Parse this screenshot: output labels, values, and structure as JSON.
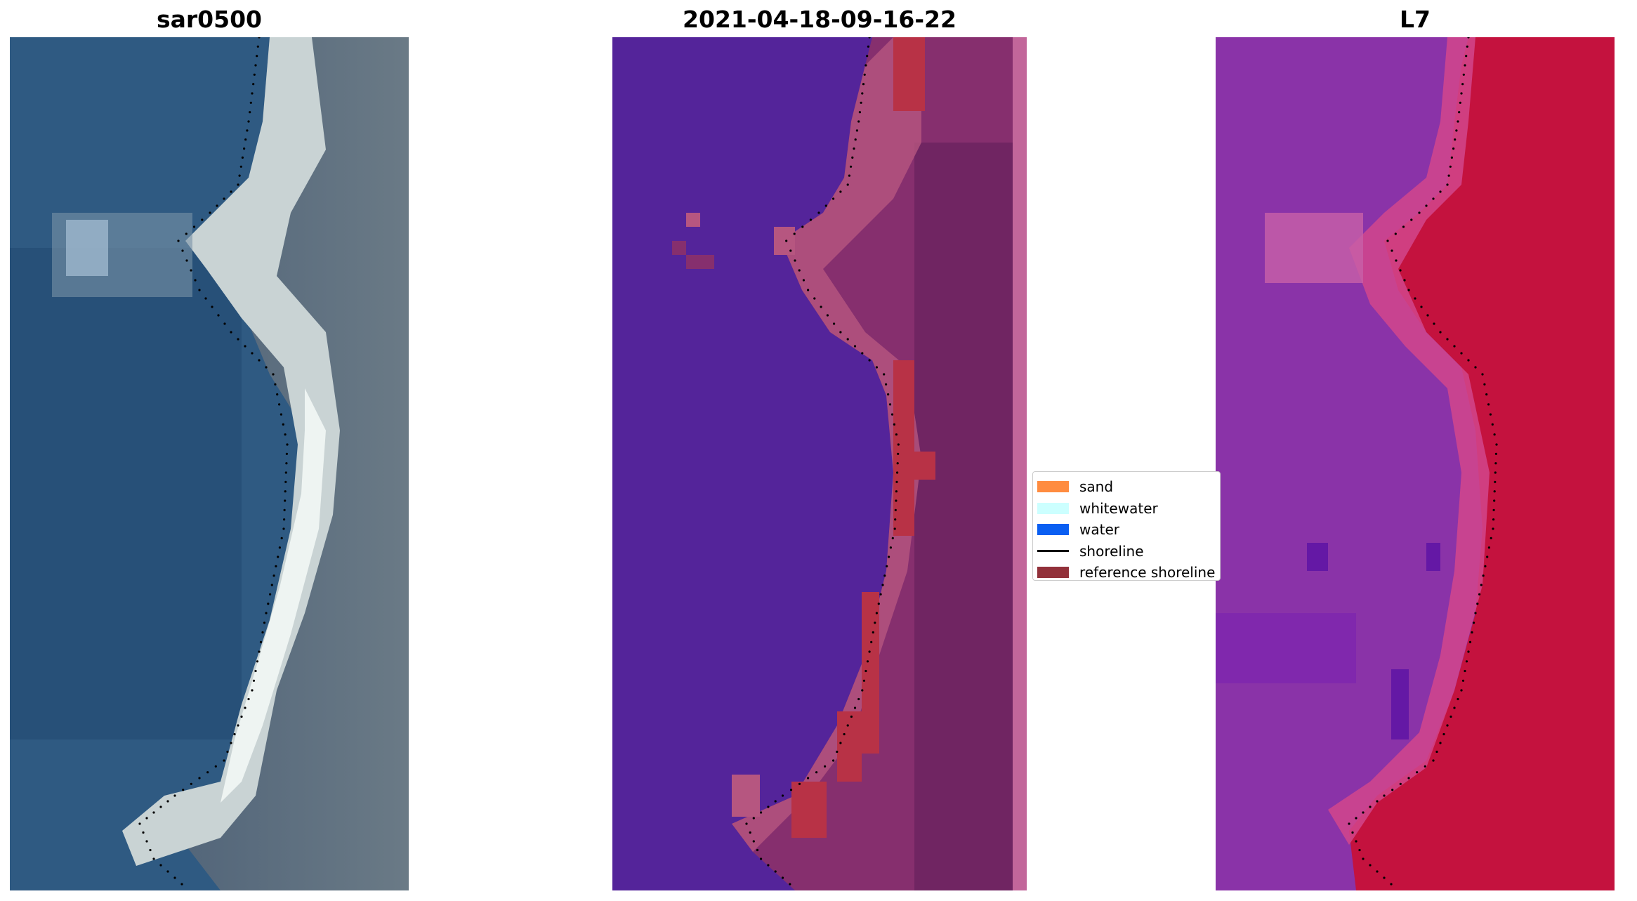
{
  "panels": [
    {
      "title": "sar0500",
      "kind": "rgb"
    },
    {
      "title": "2021-04-18-09-16-22",
      "kind": "classified"
    },
    {
      "title": "L7",
      "kind": "index"
    }
  ],
  "legend": {
    "items": [
      {
        "label": "sand",
        "color": "#ff8c40",
        "type": "patch"
      },
      {
        "label": "whitewater",
        "color": "#ccffff",
        "type": "patch"
      },
      {
        "label": "water",
        "color": "#0a5ff2",
        "type": "patch"
      },
      {
        "label": "shoreline",
        "color": "#000000",
        "type": "line"
      },
      {
        "label": "reference shoreline",
        "color": "#92313a",
        "type": "patch"
      }
    ]
  },
  "colors": {
    "sea_rgb": "#2f5a82",
    "sea_rgb_deep": "#244b74",
    "sand_rgb": "#c9d3d4",
    "sand_bright": "#eef4f2",
    "land_rgb": "#5e7180",
    "class_water": "#54249a",
    "class_land": "#862f6e",
    "class_land_dark": "#702562",
    "class_beach": "#b65680",
    "class_ref": "#b83246",
    "class_stripe": "#c2669a",
    "index_water": "#8a33a8",
    "index_land": "#c4123e",
    "index_beach": "#d2468c"
  }
}
